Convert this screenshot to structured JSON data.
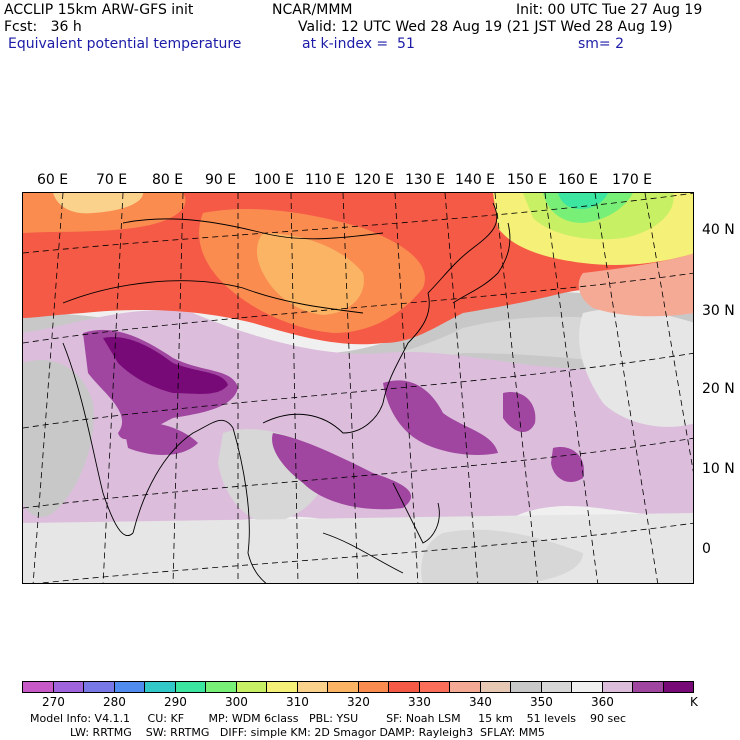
{
  "header": {
    "model_line": "ACCLIP 15km ARW-GFS init",
    "center": "NCAR/MMM",
    "init": "Init: 00 UTC Tue 27 Aug 19",
    "forecast": "Fcst:   36 h",
    "valid": "Valid: 12 UTC Wed 28 Aug 19 (21 JST Wed 28 Aug 19)",
    "field": "Equivalent potential temperature",
    "level": "at k-index =  51",
    "smoothing": "sm= 2"
  },
  "map": {
    "longitude_labels": [
      "60 E",
      "70 E",
      "80 E",
      "90 E",
      "100 E",
      "110 E",
      "120 E",
      "130 E",
      "140 E",
      "150 E",
      "160 E",
      "170 E"
    ],
    "latitude_labels": [
      "40 N",
      "30 N",
      "20 N",
      "10 N",
      "0"
    ]
  },
  "colorbar": {
    "unit": "K",
    "tick_labels": [
      "270",
      "280",
      "290",
      "300",
      "310",
      "320",
      "330",
      "340",
      "350",
      "360"
    ],
    "colors": [
      "#c85ac8",
      "#a064dc",
      "#7878e6",
      "#508cf0",
      "#32c8c8",
      "#3ce6a0",
      "#78f078",
      "#c8f064",
      "#f5f078",
      "#fad28c",
      "#fab464",
      "#fa8c50",
      "#f55a46",
      "#fa6e5a",
      "#f5aa96",
      "#e6c8b4",
      "#c8c8c8",
      "#d7d7d7",
      "#f0f0f0",
      "#dcbedc",
      "#a046a0",
      "#780a78"
    ],
    "colors_note": ""
  },
  "footer": {
    "line1": "Model Info: V4.1.1     CU: KF       MP: WDM 6class   PBL: YSU        SF: Noah LSM     15 km    51 levels    90 sec",
    "line2": "LW: RRTMG    SW: RRTMG   DIFF: simple KM: 2D Smagor DAMP: Rayleigh3  SFLAY: MM5"
  }
}
